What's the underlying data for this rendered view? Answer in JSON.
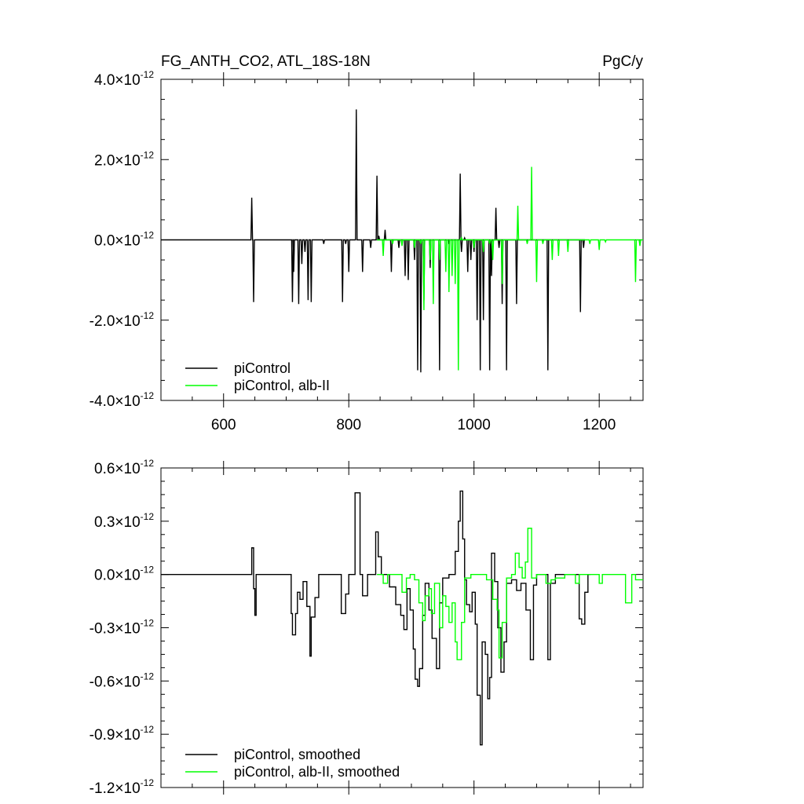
{
  "chart_data": [
    {
      "type": "line",
      "title": "FG_ANTH_CO2, ATL_18S-18N",
      "units": "PgC/y",
      "xlim": [
        500,
        1270
      ],
      "ylim": [
        -4.0,
        4.0
      ],
      "y_exponent": "-12",
      "x_ticks": [
        600,
        800,
        1000,
        1200
      ],
      "x_tick_labels": [
        "600",
        "800",
        "1000",
        "1200"
      ],
      "y_ticks": [
        4.0,
        2.0,
        0.0,
        -2.0,
        -4.0
      ],
      "y_tick_labels": [
        "4.0",
        "2.0",
        "0.0",
        "-2.0",
        "-4.0"
      ],
      "times_sign": "×",
      "legend_position": "bottom-left",
      "series": [
        {
          "name": "piControl",
          "color": "#000000",
          "start": 500,
          "end": 845,
          "spikes": [
            [
              645,
              1.05
            ],
            [
              648,
              -1.55
            ],
            [
              710,
              -1.55
            ],
            [
              712,
              -0.8
            ],
            [
              720,
              -1.6
            ],
            [
              725,
              -0.6
            ],
            [
              730,
              -0.3
            ],
            [
              735,
              -1.5
            ],
            [
              740,
              -1.55
            ],
            [
              760,
              -0.1
            ],
            [
              790,
              -1.55
            ],
            [
              795,
              -0.1
            ],
            [
              800,
              -0.8
            ],
            [
              812,
              3.25
            ],
            [
              822,
              -0.8
            ],
            [
              835,
              -0.2
            ],
            [
              845,
              1.6
            ],
            [
              848,
              0.1
            ],
            [
              858,
              0.25
            ],
            [
              868,
              -0.8
            ],
            [
              880,
              -0.2
            ],
            [
              890,
              -0.9
            ],
            [
              895,
              -1.0
            ],
            [
              905,
              -0.5
            ],
            [
              910,
              -3.25
            ],
            [
              915,
              -3.3
            ],
            [
              920,
              -1.5
            ],
            [
              930,
              -0.7
            ],
            [
              945,
              -3.25
            ],
            [
              960,
              -0.1
            ],
            [
              978,
              1.65
            ],
            [
              980,
              -0.3
            ],
            [
              985,
              0.05
            ],
            [
              990,
              -0.8
            ],
            [
              995,
              -0.5
            ],
            [
              1000,
              -0.3
            ],
            [
              1005,
              -2.0
            ],
            [
              1010,
              -3.25
            ],
            [
              1015,
              -2.0
            ],
            [
              1025,
              -3.25
            ],
            [
              1028,
              -0.9
            ],
            [
              1035,
              0.8
            ],
            [
              1040,
              -0.2
            ],
            [
              1045,
              -1.6
            ],
            [
              1052,
              -3.25
            ],
            [
              1068,
              -1.6
            ],
            [
              1118,
              -3.25
            ],
            [
              1170,
              -1.8
            ],
            [
              1175,
              -0.2
            ]
          ]
        },
        {
          "name": "piControl, alb-II",
          "color": "#00ff00",
          "start": 845,
          "end": 1270,
          "spikes": [
            [
              855,
              -0.4
            ],
            [
              870,
              -0.1
            ],
            [
              885,
              -0.15
            ],
            [
              905,
              -0.2
            ],
            [
              915,
              -0.1
            ],
            [
              920,
              -1.75
            ],
            [
              930,
              -0.5
            ],
            [
              935,
              -1.6
            ],
            [
              945,
              -0.5
            ],
            [
              955,
              -0.8
            ],
            [
              960,
              -1.3
            ],
            [
              965,
              -0.9
            ],
            [
              970,
              -1.1
            ],
            [
              975,
              -3.25
            ],
            [
              980,
              0.05
            ],
            [
              1000,
              -0.2
            ],
            [
              1015,
              -0.3
            ],
            [
              1025,
              -0.1
            ],
            [
              1030,
              -0.5
            ],
            [
              1045,
              -1.1
            ],
            [
              1070,
              0.85
            ],
            [
              1085,
              -0.1
            ],
            [
              1092,
              1.82
            ],
            [
              1100,
              -1.05
            ],
            [
              1110,
              -0.1
            ],
            [
              1125,
              -0.5
            ],
            [
              1135,
              -0.4
            ],
            [
              1150,
              -0.3
            ],
            [
              1185,
              -0.1
            ],
            [
              1200,
              -0.25
            ],
            [
              1210,
              -0.05
            ],
            [
              1258,
              -1.05
            ],
            [
              1265,
              -0.15
            ]
          ]
        }
      ]
    },
    {
      "type": "line",
      "title": "",
      "units": "",
      "xlim": [
        500,
        1270
      ],
      "ylim": [
        -1.2,
        0.6
      ],
      "y_exponent": "-12",
      "x_ticks": [
        600,
        800,
        1000,
        1200
      ],
      "x_tick_labels": [],
      "y_ticks": [
        0.6,
        0.3,
        0.0,
        -0.3,
        -0.6,
        -0.9,
        -1.2
      ],
      "y_tick_labels": [
        "0.6",
        "0.3",
        "0.0",
        "-0.3",
        "-0.6",
        "-0.9",
        "-1.2"
      ],
      "times_sign": "×",
      "legend_position": "bottom-left",
      "series": [
        {
          "name": "piControl, smoothed",
          "color": "#000000",
          "steps": [
            [
              500,
              0
            ],
            [
              643,
              0
            ],
            [
              645,
              0.15
            ],
            [
              648,
              -0.08
            ],
            [
              650,
              -0.23
            ],
            [
              652,
              0
            ],
            [
              705,
              0
            ],
            [
              708,
              -0.22
            ],
            [
              710,
              -0.34
            ],
            [
              715,
              -0.22
            ],
            [
              718,
              -0.1
            ],
            [
              722,
              -0.14
            ],
            [
              727,
              -0.04
            ],
            [
              733,
              -0.18
            ],
            [
              738,
              -0.46
            ],
            [
              740,
              -0.24
            ],
            [
              746,
              -0.13
            ],
            [
              752,
              0
            ],
            [
              785,
              0
            ],
            [
              788,
              -0.22
            ],
            [
              795,
              -0.11
            ],
            [
              800,
              0
            ],
            [
              808,
              0
            ],
            [
              810,
              0.46
            ],
            [
              818,
              0
            ],
            [
              822,
              -0.12
            ],
            [
              830,
              0
            ],
            [
              840,
              0
            ],
            [
              843,
              0.24
            ],
            [
              847,
              0.1
            ],
            [
              852,
              0
            ],
            [
              860,
              0
            ],
            [
              865,
              -0.07
            ],
            [
              875,
              -0.17
            ],
            [
              883,
              -0.23
            ],
            [
              888,
              -0.31
            ],
            [
              893,
              -0.08
            ],
            [
              898,
              -0.2
            ],
            [
              903,
              -0.42
            ],
            [
              906,
              -0.59
            ],
            [
              910,
              -0.63
            ],
            [
              913,
              -0.53
            ],
            [
              918,
              -0.23
            ],
            [
              922,
              -0.05
            ],
            [
              928,
              -0.2
            ],
            [
              933,
              -0.36
            ],
            [
              940,
              -0.53
            ],
            [
              945,
              -0.16
            ],
            [
              950,
              -0.02
            ],
            [
              960,
              0
            ],
            [
              970,
              0.13
            ],
            [
              975,
              0.3
            ],
            [
              978,
              0.47
            ],
            [
              982,
              0.2
            ],
            [
              985,
              -0.03
            ],
            [
              988,
              -0.17
            ],
            [
              993,
              -0.21
            ],
            [
              997,
              -0.1
            ],
            [
              1002,
              -0.28
            ],
            [
              1005,
              -0.68
            ],
            [
              1010,
              -0.96
            ],
            [
              1013,
              -0.38
            ],
            [
              1018,
              -0.45
            ],
            [
              1022,
              -0.7
            ],
            [
              1025,
              -0.58
            ],
            [
              1028,
              0.12
            ],
            [
              1033,
              -0.04
            ],
            [
              1038,
              -0.3
            ],
            [
              1043,
              -0.55
            ],
            [
              1048,
              -0.38
            ],
            [
              1052,
              -0.05
            ],
            [
              1060,
              -0.03
            ],
            [
              1068,
              -0.09
            ],
            [
              1075,
              -0.05
            ],
            [
              1083,
              -0.2
            ],
            [
              1090,
              -0.48
            ],
            [
              1095,
              -0.06
            ],
            [
              1100,
              0
            ],
            [
              1115,
              0
            ],
            [
              1118,
              -0.48
            ],
            [
              1122,
              -0.05
            ],
            [
              1130,
              0
            ],
            [
              1165,
              0
            ],
            [
              1168,
              -0.25
            ],
            [
              1172,
              -0.28
            ],
            [
              1177,
              -0.1
            ],
            [
              1182,
              0
            ]
          ]
        },
        {
          "name": "piControl, alb-II, smoothed",
          "color": "#00ff00",
          "steps": [
            [
              845,
              0
            ],
            [
              850,
              0.0
            ],
            [
              855,
              -0.05
            ],
            [
              862,
              0
            ],
            [
              880,
              0
            ],
            [
              885,
              -0.1
            ],
            [
              892,
              -0.02
            ],
            [
              898,
              0
            ],
            [
              905,
              -0.03
            ],
            [
              912,
              -0.16
            ],
            [
              918,
              -0.26
            ],
            [
              922,
              -0.12
            ],
            [
              928,
              -0.08
            ],
            [
              932,
              -0.22
            ],
            [
              937,
              -0.05
            ],
            [
              945,
              -0.3
            ],
            [
              950,
              -0.12
            ],
            [
              955,
              -0.18
            ],
            [
              960,
              -0.27
            ],
            [
              965,
              -0.16
            ],
            [
              970,
              -0.38
            ],
            [
              973,
              -0.48
            ],
            [
              980,
              -0.27
            ],
            [
              985,
              -0.02
            ],
            [
              995,
              0
            ],
            [
              1010,
              0
            ],
            [
              1020,
              -0.03
            ],
            [
              1030,
              -0.14
            ],
            [
              1037,
              -0.2
            ],
            [
              1040,
              -0.47
            ],
            [
              1045,
              -0.27
            ],
            [
              1052,
              -0.02
            ],
            [
              1060,
              0
            ],
            [
              1066,
              0.12
            ],
            [
              1072,
              0.04
            ],
            [
              1077,
              -0.02
            ],
            [
              1082,
              0.07
            ],
            [
              1086,
              0.26
            ],
            [
              1092,
              -0.02
            ],
            [
              1100,
              0
            ],
            [
              1110,
              0
            ],
            [
              1115,
              -0.05
            ],
            [
              1123,
              -0.03
            ],
            [
              1130,
              -0.02
            ],
            [
              1145,
              0
            ],
            [
              1158,
              0
            ],
            [
              1162,
              -0.05
            ],
            [
              1168,
              0
            ],
            [
              1195,
              0
            ],
            [
              1200,
              -0.05
            ],
            [
              1205,
              0
            ],
            [
              1238,
              0
            ],
            [
              1242,
              -0.16
            ],
            [
              1252,
              0
            ],
            [
              1258,
              -0.03
            ],
            [
              1270,
              -0.03
            ]
          ]
        }
      ]
    }
  ]
}
